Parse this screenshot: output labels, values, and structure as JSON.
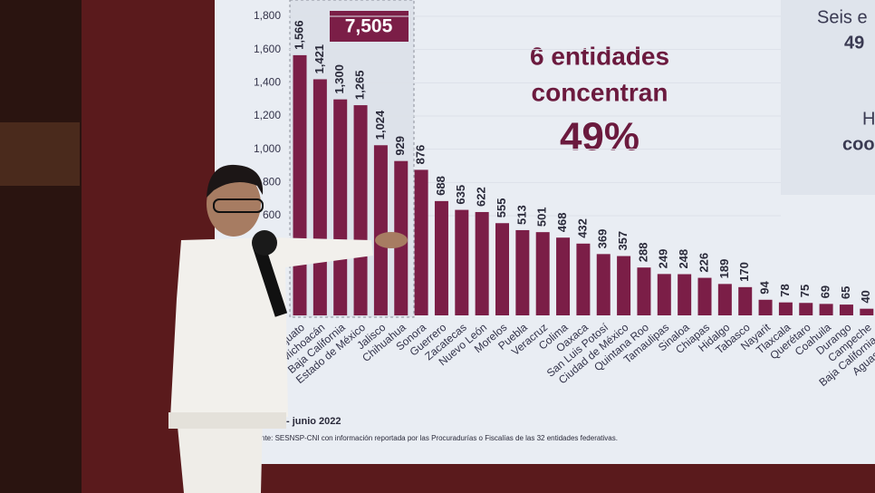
{
  "chart_data": {
    "type": "bar",
    "categories": [
      "Guanajuato",
      "Michoacán",
      "Baja California",
      "Estado de México",
      "Jalisco",
      "Chihuahua",
      "Sonora",
      "Guerrero",
      "Zacatecas",
      "Nuevo León",
      "Morelos",
      "Puebla",
      "Veracruz",
      "Colima",
      "Oaxaca",
      "San Luis Potosí",
      "Ciudad de México",
      "Quintana Roo",
      "Tamaulipas",
      "Sinaloa",
      "Chiapas",
      "Hidalgo",
      "Tabasco",
      "Nayarit",
      "Tlaxcala",
      "Querétaro",
      "Coahuila",
      "Durango",
      "Campeche",
      "Baja California Sur",
      "Aguascalientes"
    ],
    "values": [
      1566,
      1421,
      1300,
      1265,
      1024,
      929,
      876,
      688,
      635,
      622,
      555,
      513,
      501,
      468,
      432,
      369,
      357,
      288,
      249,
      248,
      226,
      189,
      170,
      94,
      78,
      75,
      69,
      65,
      40,
      null,
      null
    ],
    "value_labels": [
      "1,566",
      "1,421",
      "1,300",
      "1,265",
      "1,024",
      "929",
      "876",
      "688",
      "635",
      "622",
      "555",
      "513",
      "501",
      "468",
      "432",
      "369",
      "357",
      "288",
      "249",
      "248",
      "226",
      "189",
      "170",
      "94",
      "78",
      "75",
      "69",
      "65",
      "40",
      null,
      null
    ],
    "color": "#7b1e47",
    "ylim": [
      0,
      1800
    ],
    "yticks": [
      600,
      800,
      {
        "value": 1000,
        "label": "1,000"
      },
      {
        "value": 1200,
        "label": "1,200"
      },
      {
        "value": 1400,
        "label": "1,400"
      },
      {
        "value": 1600,
        "label": "1,600"
      },
      {
        "value": 1800,
        "label": "1,800"
      }
    ],
    "total_label": "7,505",
    "headline": "6 entidades",
    "headline2": "concentran",
    "headline_pct": "49%",
    "side_text": [
      "Seis e",
      "49",
      "H",
      "coo"
    ],
    "period": "- junio 2022",
    "source": "nte: SESNSP-CNI con información reportada por las Procuradurías o Fiscalías de las 32 entidades federativas."
  }
}
